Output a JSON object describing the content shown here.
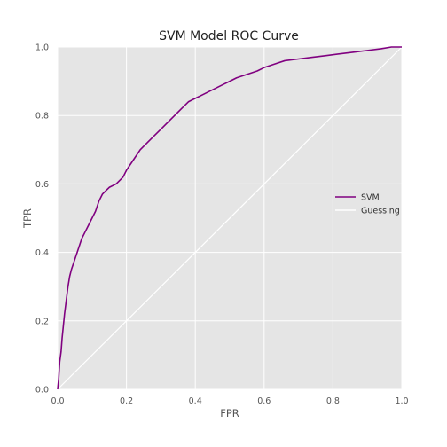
{
  "chart_data": {
    "type": "line",
    "title": "SVM Model ROC Curve",
    "xlabel": "FPR",
    "ylabel": "TPR",
    "xlim": [
      0,
      1
    ],
    "ylim": [
      0,
      1
    ],
    "xticks": [
      "0.0",
      "0.2",
      "0.4",
      "0.6",
      "0.8",
      "1.0"
    ],
    "yticks": [
      "0.0",
      "0.2",
      "0.4",
      "0.6",
      "0.8",
      "1.0"
    ],
    "grid": true,
    "legend_position": "center-right",
    "background_color": "#e5e5e5",
    "grid_color": "#ffffff",
    "series": [
      {
        "name": "SVM",
        "color": "#800080",
        "x": [
          0.0,
          0.003,
          0.006,
          0.01,
          0.013,
          0.016,
          0.02,
          0.025,
          0.03,
          0.035,
          0.04,
          0.05,
          0.06,
          0.07,
          0.08,
          0.09,
          0.1,
          0.11,
          0.12,
          0.13,
          0.14,
          0.15,
          0.17,
          0.19,
          0.2,
          0.22,
          0.24,
          0.26,
          0.28,
          0.3,
          0.32,
          0.34,
          0.36,
          0.38,
          0.4,
          0.42,
          0.44,
          0.46,
          0.48,
          0.5,
          0.52,
          0.55,
          0.58,
          0.6,
          0.63,
          0.66,
          0.7,
          0.74,
          0.78,
          0.82,
          0.86,
          0.9,
          0.94,
          0.97,
          1.0
        ],
        "y": [
          0.0,
          0.03,
          0.08,
          0.11,
          0.15,
          0.18,
          0.22,
          0.26,
          0.3,
          0.33,
          0.35,
          0.38,
          0.41,
          0.44,
          0.46,
          0.48,
          0.5,
          0.52,
          0.55,
          0.57,
          0.58,
          0.59,
          0.6,
          0.62,
          0.64,
          0.67,
          0.7,
          0.72,
          0.74,
          0.76,
          0.78,
          0.8,
          0.82,
          0.84,
          0.85,
          0.86,
          0.87,
          0.88,
          0.89,
          0.9,
          0.91,
          0.92,
          0.93,
          0.94,
          0.95,
          0.96,
          0.965,
          0.97,
          0.975,
          0.98,
          0.985,
          0.99,
          0.995,
          1.0,
          1.0
        ]
      },
      {
        "name": "Guessing",
        "color": "#ffffff",
        "x": [
          0,
          1
        ],
        "y": [
          0,
          1
        ]
      }
    ]
  }
}
